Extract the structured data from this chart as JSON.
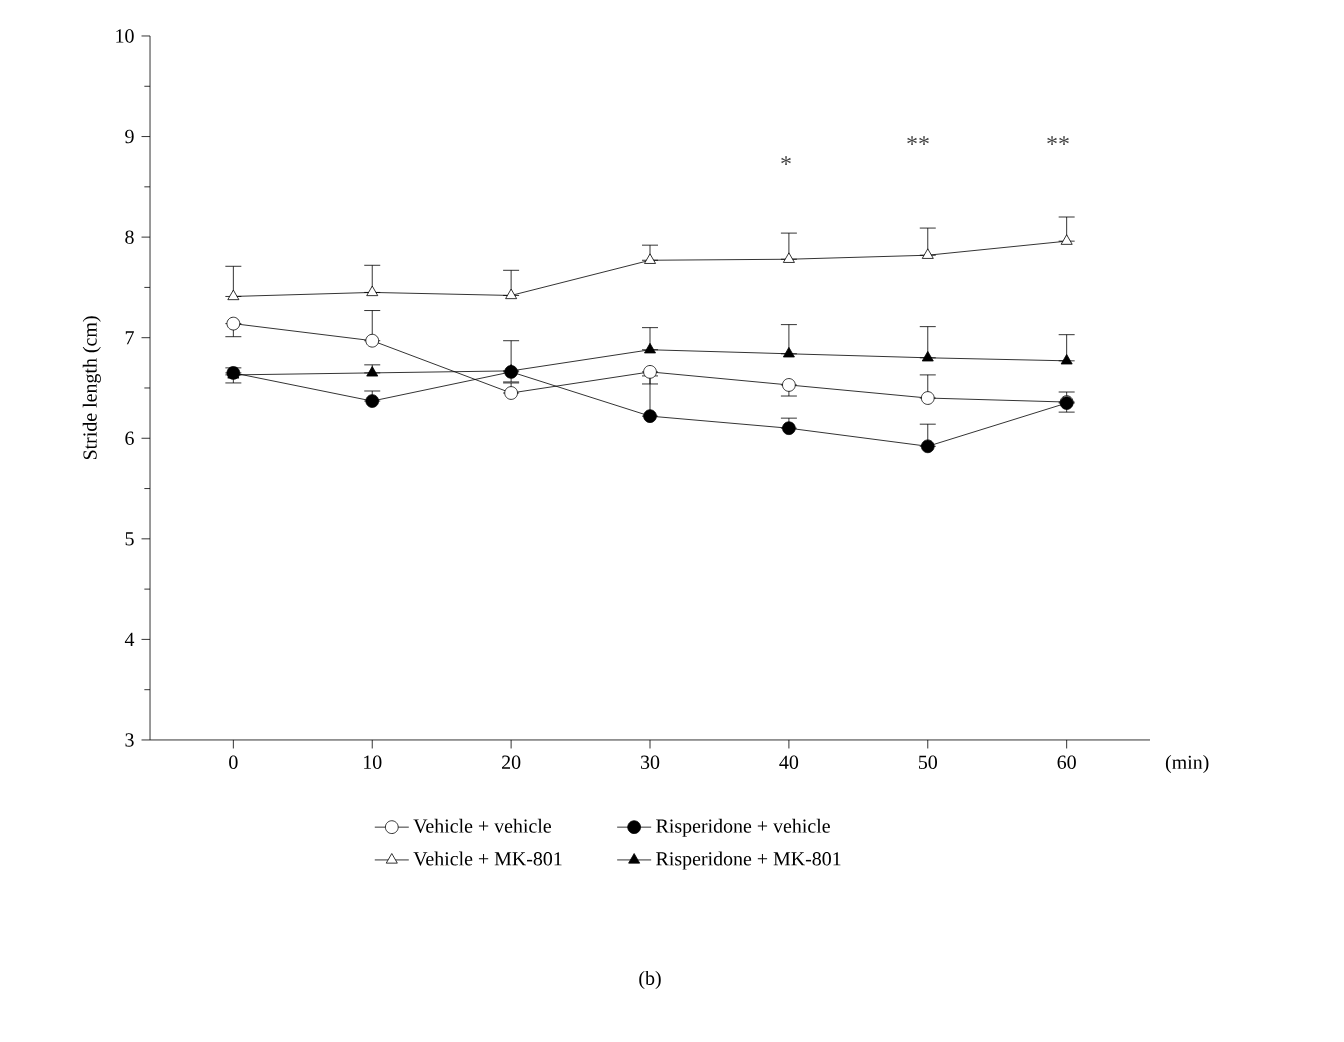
{
  "chart_data": {
    "type": "line",
    "ylabel": "Stride length (cm)",
    "xlabel": "(min)",
    "x": [
      0,
      10,
      20,
      30,
      40,
      50,
      60
    ],
    "xlim": [
      -6,
      66
    ],
    "xticks": [
      0,
      10,
      20,
      30,
      40,
      50,
      60
    ],
    "ylim": [
      3,
      10
    ],
    "yticks": [
      3,
      4,
      5,
      6,
      7,
      8,
      9,
      10
    ],
    "legend": "bottom",
    "line_style": "solid",
    "series": [
      {
        "name": "Vehicle + vehicle",
        "color": "#000000",
        "marker": "circle",
        "values": [
          7.14,
          6.97,
          6.45,
          6.66,
          6.53,
          6.4,
          6.36
        ],
        "errors": [
          [
            7.01,
            7.14
          ],
          [
            6.97,
            7.27
          ],
          [
            6.45,
            6.55
          ],
          [
            6.54,
            6.66
          ],
          [
            6.42,
            6.53
          ],
          [
            6.4,
            6.63
          ],
          [
            6.36,
            6.46
          ]
        ]
      },
      {
        "name": "Risperidone + vehicle",
        "color": "#000000",
        "marker": "circle",
        "values": [
          6.65,
          6.37,
          6.66,
          6.22,
          6.1,
          5.92,
          6.35
        ],
        "errors": [
          [
            6.55,
            6.65
          ],
          [
            6.37,
            6.47
          ],
          [
            6.56,
            6.66
          ],
          [
            6.22,
            6.62
          ],
          [
            6.1,
            6.2
          ],
          [
            5.92,
            6.14
          ],
          [
            6.26,
            6.35
          ]
        ]
      },
      {
        "name": "Vehicle + MK-801",
        "color": "#000000",
        "marker": "triangle",
        "values": [
          7.41,
          7.45,
          7.42,
          7.77,
          7.78,
          7.82,
          7.96
        ],
        "errors": [
          [
            7.41,
            7.71
          ],
          [
            7.45,
            7.72
          ],
          [
            7.42,
            7.67
          ],
          [
            7.77,
            7.92
          ],
          [
            7.78,
            8.04
          ],
          [
            7.82,
            8.09
          ],
          [
            7.96,
            8.2
          ]
        ]
      },
      {
        "name": "Risperidone + MK-801",
        "color": "#000000",
        "marker": "triangle",
        "values": [
          6.63,
          6.65,
          6.67,
          6.88,
          6.84,
          6.8,
          6.77
        ],
        "errors": [
          [
            6.63,
            6.7
          ],
          [
            6.65,
            6.73
          ],
          [
            6.67,
            6.97
          ],
          [
            6.88,
            7.1
          ],
          [
            6.84,
            7.13
          ],
          [
            6.8,
            7.11
          ],
          [
            6.77,
            7.03
          ]
        ]
      }
    ],
    "annotations": [
      "*",
      "**",
      "**",
      "(b)"
    ]
  }
}
